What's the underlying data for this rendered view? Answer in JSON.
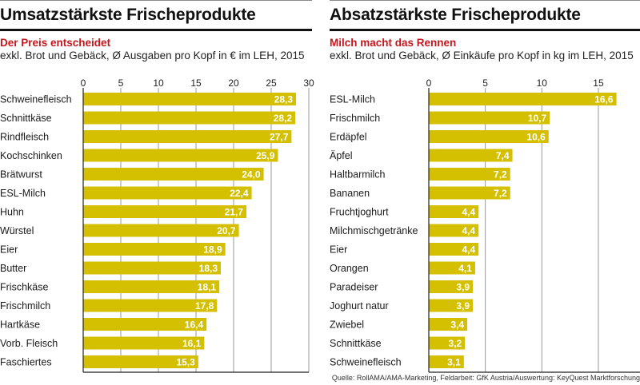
{
  "colors": {
    "bar": "#D4C000",
    "subtitle": "#C8161D",
    "grid": "#999999",
    "axis": "#222222"
  },
  "source": "Quelle: RollAMA/AMA-Marketing, Feldarbeit: GfK Austria/Auswertung: KeyQuest Marktforschung",
  "chart_data": [
    {
      "type": "bar",
      "orientation": "horizontal",
      "title": "Umsatzstärkste Frischeprodukte",
      "subtitle": "Der Preis entscheidet",
      "description": "exkl. Brot und Gebäck,  Ø Ausgaben pro Kopf in € im LEH, 2015",
      "xlabel": "",
      "ylabel": "",
      "xlim": [
        0,
        30
      ],
      "ticks": [
        0,
        5,
        10,
        15,
        20,
        25,
        30
      ],
      "tick_labels": [
        "0",
        "5",
        "10",
        "15",
        "20",
        "25",
        "30"
      ],
      "grid": true,
      "categories": [
        "Schweinefleisch",
        "Schnittkäse",
        "Rindfleisch",
        "Kochschinken",
        "Brätwurst",
        "ESL-Milch",
        "Huhn",
        "Würstel",
        "Eier",
        "Butter",
        "Frischkäse",
        "Frischmilch",
        "Hartkäse",
        "Vorb. Fleisch",
        "Faschiertes"
      ],
      "values": [
        28.3,
        28.2,
        27.7,
        25.9,
        24.0,
        22.4,
        21.7,
        20.7,
        18.9,
        18.3,
        18.1,
        17.8,
        16.4,
        16.1,
        15.3
      ],
      "value_labels": [
        "28,3",
        "28,2",
        "27,7",
        "25,9",
        "24,0",
        "22,4",
        "21,7",
        "20,7",
        "18,9",
        "18,3",
        "18,1",
        "17,8",
        "16,4",
        "16,1",
        "15,3"
      ]
    },
    {
      "type": "bar",
      "orientation": "horizontal",
      "title": "Absatzstärkste Frischeprodukte",
      "subtitle": "Milch macht das Rennen",
      "description": "exkl. Brot und Gebäck,  Ø Einkäufe pro Kopf in kg im LEH, 2015",
      "xlabel": "",
      "ylabel": "",
      "xlim": [
        0,
        18.5
      ],
      "ticks": [
        0,
        5,
        10,
        15
      ],
      "tick_labels": [
        "0",
        "5",
        "10",
        "15"
      ],
      "grid": true,
      "categories": [
        "ESL-Milch",
        "Frischmilch",
        "Erdäpfel",
        "Äpfel",
        "Haltbarmilch",
        "Bananen",
        "Fruchtjoghurt",
        "Milchmischgetränke",
        "Eier",
        "Orangen",
        "Paradeiser",
        "Joghurt natur",
        "Zwiebel",
        "Schnittkäse",
        "Schweinefleisch"
      ],
      "values": [
        16.6,
        10.7,
        10.6,
        7.4,
        7.2,
        7.2,
        4.4,
        4.4,
        4.4,
        4.1,
        3.9,
        3.9,
        3.4,
        3.2,
        3.1
      ],
      "value_labels": [
        "16,6",
        "10,7",
        "10,6",
        "7,4",
        "7,2",
        "7,2",
        "4,4",
        "4,4",
        "4,4",
        "4,1",
        "3,9",
        "3,9",
        "3,4",
        "3,2",
        "3,1"
      ]
    }
  ]
}
